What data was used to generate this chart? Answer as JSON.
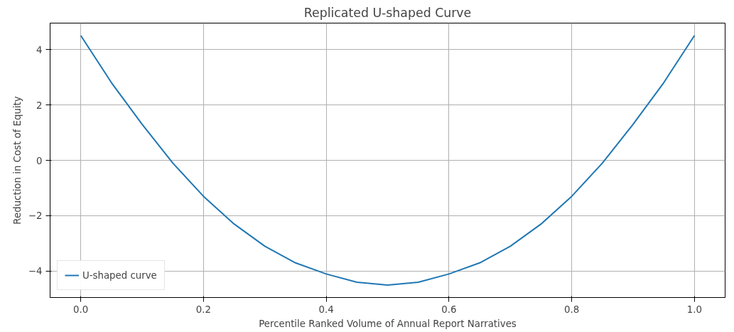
{
  "chart_data": {
    "type": "line",
    "title": "Replicated U-shaped Curve",
    "xlabel": "Percentile Ranked Volume of Annual Report Narratives",
    "ylabel": "Reduction in Cost of Equity",
    "x": [
      0,
      0.05,
      0.1,
      0.15,
      0.2,
      0.25,
      0.3,
      0.35,
      0.4,
      0.45,
      0.5,
      0.55,
      0.6,
      0.65,
      0.7,
      0.75,
      0.8,
      0.85,
      0.9,
      0.95,
      1.0
    ],
    "series": [
      {
        "name": "U-shaped curve",
        "color": "#1f77b4",
        "values": [
          4.5,
          2.8,
          1.3,
          -0.1,
          -1.3,
          -2.3,
          -3.1,
          -3.7,
          -4.1,
          -4.4,
          -4.5,
          -4.4,
          -4.1,
          -3.7,
          -3.1,
          -2.3,
          -1.3,
          -0.1,
          1.3,
          2.8,
          4.5
        ]
      }
    ],
    "xlim": [
      -0.05,
      1.05
    ],
    "xticks": [
      {
        "value": 0,
        "label": "0.0"
      },
      0.2,
      0.4,
      0.6,
      0.8,
      {
        "value": 1,
        "label": "1.0"
      }
    ],
    "ylim": [
      -4.95,
      4.95
    ],
    "yticks": [
      {
        "value": -4,
        "label": "−4"
      },
      {
        "value": -2,
        "label": "−2"
      },
      0,
      2,
      4
    ],
    "grid": true,
    "legend": "bottom left",
    "line_style": "solid",
    "marker": "none"
  }
}
